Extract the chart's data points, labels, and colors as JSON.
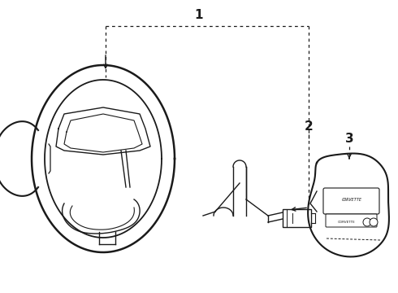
{
  "background_color": "#ffffff",
  "line_color": "#1a1a1a",
  "figsize": [
    4.9,
    3.6
  ],
  "dpi": 100,
  "label1": "1",
  "label2": "2",
  "label3": "3"
}
